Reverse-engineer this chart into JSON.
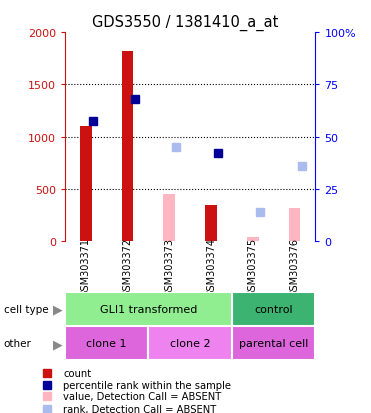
{
  "title": "GDS3550 / 1381410_a_at",
  "samples": [
    "GSM303371",
    "GSM303372",
    "GSM303373",
    "GSM303374",
    "GSM303375",
    "GSM303376"
  ],
  "count_values": [
    1100,
    1820,
    null,
    350,
    null,
    null
  ],
  "count_absent_values": [
    null,
    null,
    450,
    null,
    40,
    320
  ],
  "percentile_values": [
    1150,
    1360,
    null,
    840,
    null,
    null
  ],
  "percentile_absent_values": [
    null,
    null,
    900,
    null,
    280,
    720
  ],
  "ylim_left": [
    0,
    2000
  ],
  "ylim_right": [
    0,
    100
  ],
  "yticks_left": [
    0,
    500,
    1000,
    1500,
    2000
  ],
  "yticks_right": [
    0,
    25,
    50,
    75,
    100
  ],
  "cell_type_groups": [
    {
      "label": "GLI1 transformed",
      "start": 0,
      "end": 4,
      "color": "#90ee90"
    },
    {
      "label": "control",
      "start": 4,
      "end": 6,
      "color": "#3cb371"
    }
  ],
  "other_groups": [
    {
      "label": "clone 1",
      "start": 0,
      "end": 2,
      "color": "#dd66dd"
    },
    {
      "label": "clone 2",
      "start": 2,
      "end": 4,
      "color": "#ee82ee"
    },
    {
      "label": "parental cell",
      "start": 4,
      "end": 6,
      "color": "#dd66dd"
    }
  ],
  "count_color": "#cc1111",
  "count_absent_color": "#ffb6c1",
  "percentile_color": "#000099",
  "percentile_absent_color": "#aabbee",
  "bg_color": "#cccccc",
  "legend_items": [
    {
      "color": "#cc1111",
      "label": "count",
      "marker": "s"
    },
    {
      "color": "#000099",
      "label": "percentile rank within the sample",
      "marker": "s"
    },
    {
      "color": "#ffb6c1",
      "label": "value, Detection Call = ABSENT",
      "marker": "s"
    },
    {
      "color": "#aabbee",
      "label": "rank, Detection Call = ABSENT",
      "marker": "s"
    }
  ]
}
